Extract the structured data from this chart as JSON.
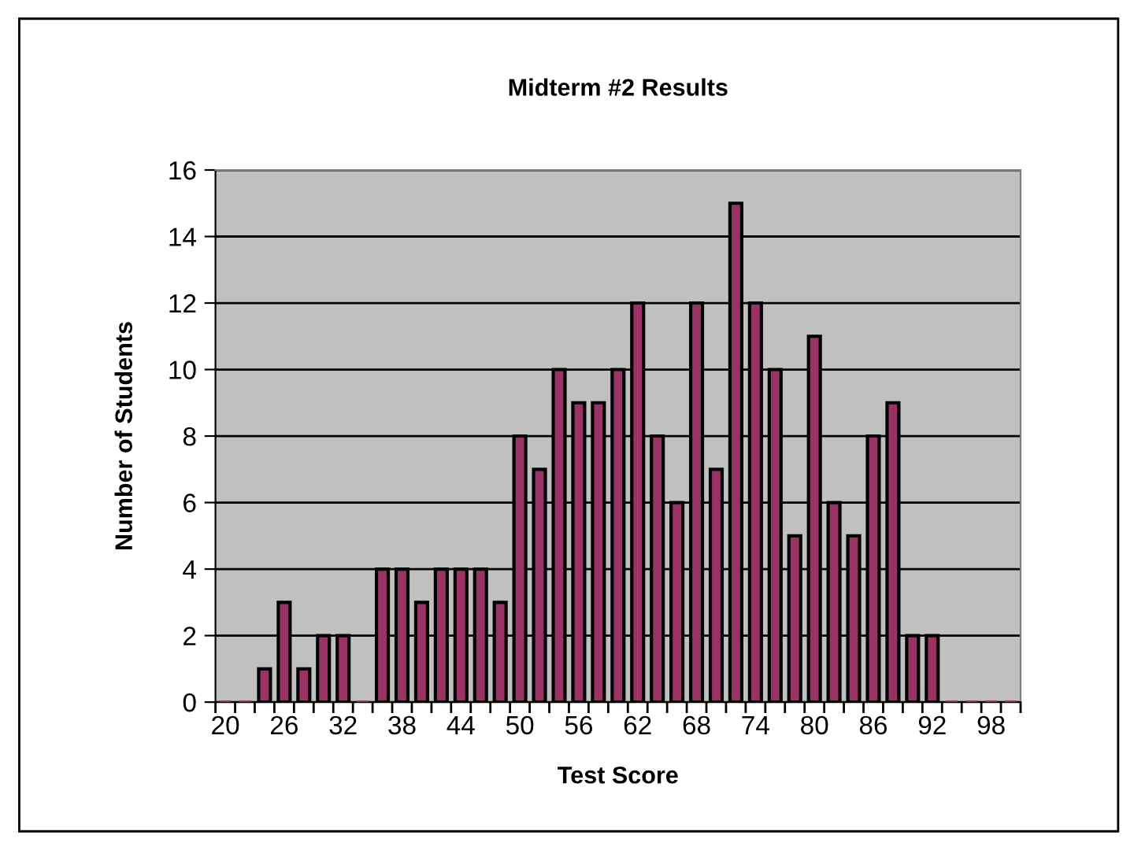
{
  "chart_data": {
    "type": "bar",
    "title": "Midterm #2 Results",
    "xlabel": "Test Score",
    "ylabel": "Number of Students",
    "categories": [
      "20",
      null,
      null,
      "26",
      null,
      null,
      "32",
      null,
      null,
      "38",
      null,
      null,
      "44",
      null,
      null,
      "50",
      null,
      null,
      "56",
      null,
      null,
      "62",
      null,
      null,
      "68",
      null,
      null,
      "74",
      null,
      null,
      "80",
      null,
      null,
      "86",
      null,
      null,
      "92",
      null,
      null,
      "98",
      null
    ],
    "values": [
      0,
      0,
      1,
      3,
      1,
      2,
      2,
      0,
      4,
      4,
      3,
      4,
      4,
      4,
      3,
      8,
      7,
      10,
      9,
      9,
      10,
      12,
      8,
      6,
      12,
      7,
      15,
      12,
      10,
      5,
      11,
      6,
      5,
      8,
      9,
      2,
      2,
      0,
      0,
      0,
      0
    ],
    "color": "#993366",
    "ylim": [
      0,
      16
    ],
    "yticks": [
      0,
      2,
      4,
      6,
      8,
      10,
      12,
      14,
      16
    ],
    "grid": "y"
  }
}
